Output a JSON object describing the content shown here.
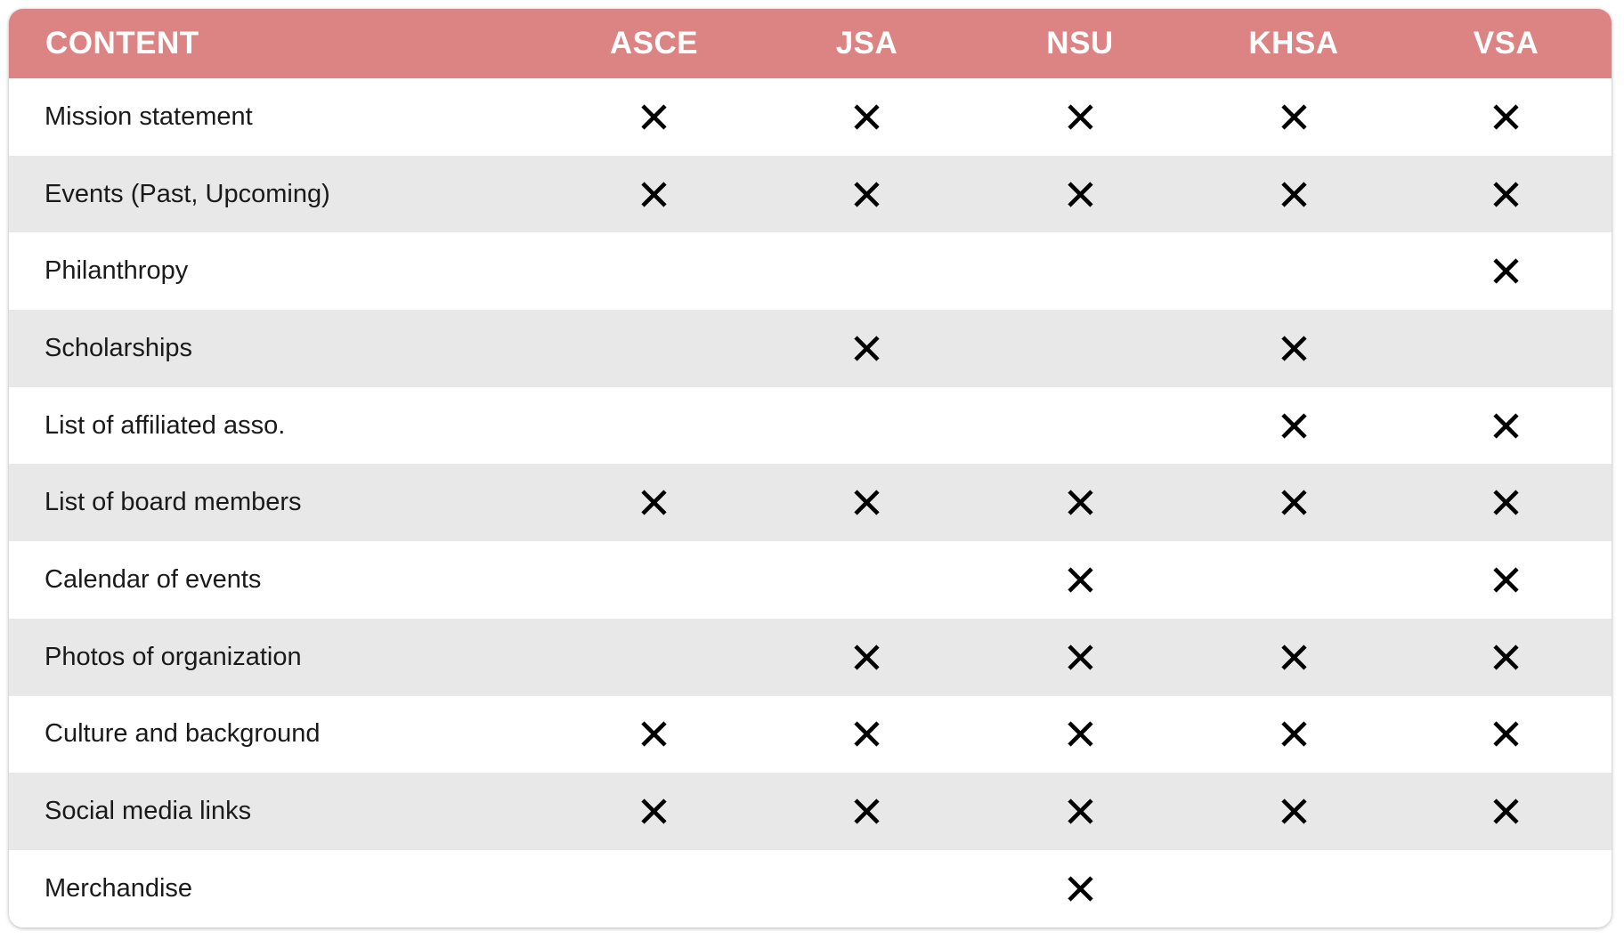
{
  "chart_data": {
    "type": "table",
    "columns": [
      "CONTENT",
      "ASCE",
      "JSA",
      "NSU",
      "KHSA",
      "VSA"
    ],
    "rows": [
      {
        "label": "Mission statement",
        "marks": [
          true,
          true,
          true,
          true,
          true
        ]
      },
      {
        "label": "Events (Past, Upcoming)",
        "marks": [
          true,
          true,
          true,
          true,
          true
        ]
      },
      {
        "label": "Philanthropy",
        "marks": [
          false,
          false,
          false,
          false,
          true
        ]
      },
      {
        "label": "Scholarships",
        "marks": [
          false,
          true,
          false,
          true,
          false
        ]
      },
      {
        "label": "List of affiliated asso.",
        "marks": [
          false,
          false,
          false,
          true,
          true
        ]
      },
      {
        "label": "List of board members",
        "marks": [
          true,
          true,
          true,
          true,
          true
        ]
      },
      {
        "label": "Calendar of events",
        "marks": [
          false,
          false,
          true,
          false,
          true
        ]
      },
      {
        "label": "Photos of organization",
        "marks": [
          false,
          true,
          true,
          true,
          true
        ]
      },
      {
        "label": "Culture and background",
        "marks": [
          true,
          true,
          true,
          true,
          true
        ]
      },
      {
        "label": "Social media links",
        "marks": [
          true,
          true,
          true,
          true,
          true
        ]
      },
      {
        "label": "Merchandise",
        "marks": [
          false,
          false,
          true,
          false,
          false
        ]
      }
    ],
    "mark_icon": "x-mark-icon"
  },
  "colors": {
    "header_background": "#db8483",
    "header_text": "#ffffff",
    "row_even_background": "#ffffff",
    "row_odd_background": "#e8e8e8",
    "row_text": "#1a1a1a",
    "mark_color": "#000000"
  }
}
